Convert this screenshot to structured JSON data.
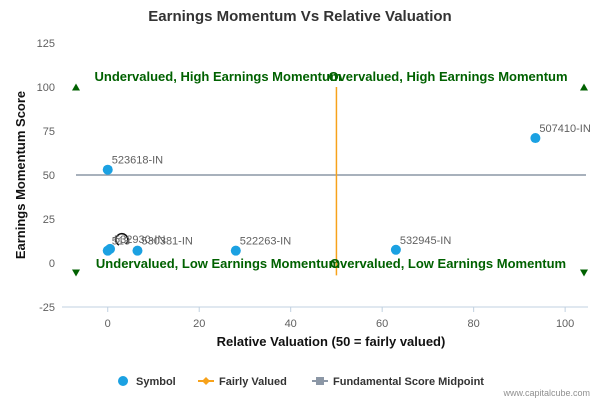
{
  "chart_data": {
    "type": "scatter",
    "title": "Earnings Momentum Vs Relative Valuation",
    "xlabel": "Relative Valuation (50 = fairly valued)",
    "ylabel": "Earnings Momentum Score",
    "xlim": [
      -10,
      105
    ],
    "ylim": [
      -25,
      125
    ],
    "x_ticks": [
      "0",
      "20",
      "40",
      "60",
      "80",
      "100"
    ],
    "y_ticks": [
      "125",
      "100",
      "75",
      "50",
      "25",
      "0",
      "-25"
    ],
    "fairly_valued_x": 50,
    "fundamental_midpoint_y": 50,
    "quadrant_labels": {
      "top_left": "Undervalued, High Earnings Momentum",
      "top_right": "Overvalued, High Earnings Momentum",
      "bottom_left": "Undervalued, Low Earnings Momentum",
      "bottom_right": "Overvalued, Low Earnings Momentum"
    },
    "points": [
      {
        "label": "507410-IN",
        "x": 93.5,
        "y": 71
      },
      {
        "label": "523618-IN",
        "x": 0,
        "y": 53
      },
      {
        "label": "532930-IN",
        "x": 0.5,
        "y": 8
      },
      {
        "label": "513",
        "x": 0,
        "y": 7
      },
      {
        "label": "530381-IN",
        "x": 6.5,
        "y": 7
      },
      {
        "label": "522263-IN",
        "x": 28,
        "y": 7
      },
      {
        "label": "532945-IN",
        "x": 63,
        "y": 7.5
      }
    ],
    "legend": [
      {
        "name": "Symbol",
        "color": "#1ba1e2"
      },
      {
        "name": "Fairly Valued",
        "color": "#f7a21b"
      },
      {
        "name": "Fundamental Score Midpoint",
        "color": "#8c97a6"
      }
    ],
    "grid": false,
    "legend_position": "bottom"
  },
  "credit": "www.capitalcube.com",
  "colors": {
    "point": "#1ba1e2",
    "fairly_valued_line": "#f7a21b",
    "midpoint_line": "#8c97a6",
    "quadrant_text": "#006100",
    "corner_marker": "#006100"
  }
}
